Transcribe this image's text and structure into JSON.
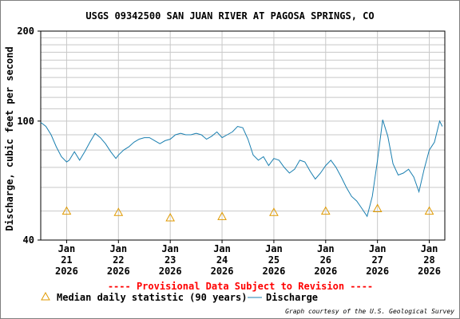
{
  "chart_data": {
    "type": "line",
    "title": "USGS 09342500 SAN JUAN RIVER AT PAGOSA SPRINGS, CO",
    "ylabel": "Discharge, cubic feet per second",
    "yscale": "log",
    "ylim": [
      40,
      200
    ],
    "ytick_labels": [
      "40",
      "100",
      "200"
    ],
    "xlim": [
      0,
      7.8
    ],
    "x_ticks": [
      {
        "x": 0.5,
        "lines": [
          "Jan",
          "21",
          "2026"
        ]
      },
      {
        "x": 1.5,
        "lines": [
          "Jan",
          "22",
          "2026"
        ]
      },
      {
        "x": 2.5,
        "lines": [
          "Jan",
          "23",
          "2026"
        ]
      },
      {
        "x": 3.5,
        "lines": [
          "Jan",
          "24",
          "2026"
        ]
      },
      {
        "x": 4.5,
        "lines": [
          "Jan",
          "25",
          "2026"
        ]
      },
      {
        "x": 5.5,
        "lines": [
          "Jan",
          "26",
          "2026"
        ]
      },
      {
        "x": 6.5,
        "lines": [
          "Jan",
          "27",
          "2026"
        ]
      },
      {
        "x": 7.5,
        "lines": [
          "Jan",
          "28",
          "2026"
        ]
      }
    ],
    "grid": true,
    "provisional_note": "---- Provisional Data Subject to Revision ----",
    "credit": "Graph courtesy of the U.S. Geological Survey",
    "series": [
      {
        "name": "Discharge",
        "style": "line",
        "color": "#1a7fb0",
        "x": [
          0,
          0.1,
          0.2,
          0.3,
          0.4,
          0.5,
          0.55,
          0.65,
          0.75,
          0.85,
          0.95,
          1.05,
          1.15,
          1.25,
          1.35,
          1.45,
          1.5,
          1.6,
          1.7,
          1.8,
          1.9,
          2.0,
          2.1,
          2.2,
          2.3,
          2.4,
          2.5,
          2.6,
          2.7,
          2.8,
          2.9,
          3.0,
          3.1,
          3.2,
          3.3,
          3.4,
          3.5,
          3.6,
          3.7,
          3.8,
          3.9,
          4.0,
          4.1,
          4.2,
          4.3,
          4.4,
          4.5,
          4.6,
          4.7,
          4.8,
          4.9,
          5.0,
          5.1,
          5.2,
          5.3,
          5.4,
          5.5,
          5.6,
          5.7,
          5.8,
          5.9,
          6.0,
          6.1,
          6.2,
          6.3,
          6.4,
          6.5,
          6.6,
          6.7,
          6.8,
          6.9,
          7.0,
          7.1,
          7.2,
          7.3,
          7.4,
          7.5,
          7.6,
          7.7,
          7.75
        ],
        "y": [
          99,
          96,
          90,
          82,
          76,
          73,
          74,
          79,
          74,
          79,
          85,
          91,
          88,
          84,
          79,
          75,
          77,
          80,
          82,
          85,
          87,
          88,
          88,
          86,
          84,
          86,
          87,
          90,
          91,
          90,
          90,
          91,
          90,
          87,
          89,
          92,
          88,
          90,
          92,
          96,
          95,
          87,
          77,
          74,
          76,
          71,
          75,
          74,
          70,
          67,
          69,
          74,
          73,
          68,
          64,
          67,
          71,
          74,
          70,
          65,
          60,
          56,
          54,
          51,
          48,
          56,
          74,
          101,
          89,
          72,
          66,
          67,
          69,
          65,
          58,
          69,
          80,
          85,
          100,
          96
        ]
      },
      {
        "name": "Median daily statistic (90 years)",
        "style": "markers",
        "marker": "triangle",
        "color": "#e09a00",
        "x": [
          0.5,
          1.5,
          2.5,
          3.5,
          4.5,
          5.5,
          6.5,
          7.5
        ],
        "y": [
          50,
          49.5,
          47.5,
          48,
          49.5,
          50,
          51,
          50
        ]
      }
    ]
  }
}
